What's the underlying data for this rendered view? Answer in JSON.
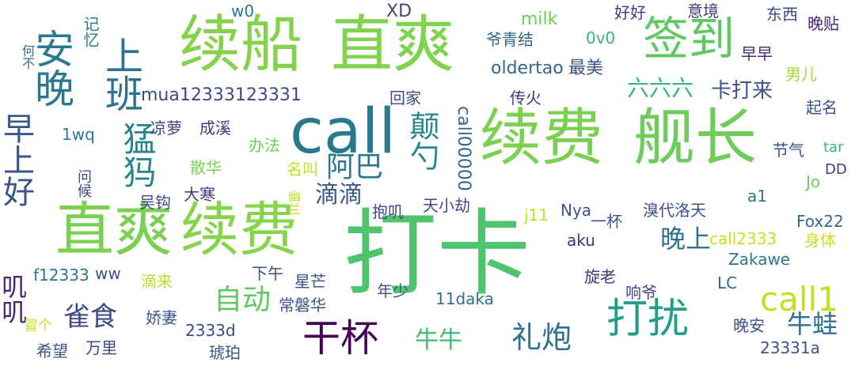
{
  "cloud": {
    "background": "#ffffff",
    "words": [
      {
        "text": "打卡",
        "color": "#4fc36d"
      },
      {
        "text": "续船",
        "color": "#84d14a"
      },
      {
        "text": "直爽",
        "color": "#7fd34e"
      },
      {
        "text": "call",
        "color": "#2a788e"
      },
      {
        "text": "续费",
        "color": "#7ad151"
      },
      {
        "text": "舰长",
        "color": "#6ccd5a"
      },
      {
        "text": "直爽",
        "color": "#7ad151"
      },
      {
        "text": "续费",
        "color": "#86d549"
      },
      {
        "text": "签到",
        "color": "#5ec962"
      },
      {
        "text": "安晚",
        "color": "#2a788e"
      },
      {
        "text": "上班",
        "color": "#2c718e"
      },
      {
        "text": "猛犸",
        "color": "#25858e"
      },
      {
        "text": "早上好",
        "color": "#39568c"
      },
      {
        "text": "打扰",
        "color": "#1f9e89"
      },
      {
        "text": "干杯",
        "color": "#440154"
      },
      {
        "text": "call1",
        "color": "#c2df23"
      },
      {
        "text": "礼炮",
        "color": "#2c728e"
      },
      {
        "text": "颠勺",
        "color": "#23898e"
      },
      {
        "text": "阿巴",
        "color": "#2a788e"
      },
      {
        "text": "自动",
        "color": "#5ec962"
      },
      {
        "text": "雀食",
        "color": "#3e4989"
      },
      {
        "text": "晚上",
        "color": "#2c728e"
      },
      {
        "text": "牛蛙",
        "color": "#2c728e"
      },
      {
        "text": "牛牛",
        "color": "#3fbc73"
      },
      {
        "text": "滴滴",
        "color": "#38598c"
      },
      {
        "text": "六六六",
        "color": "#35b779"
      },
      {
        "text": "卡打来",
        "color": "#3b528b"
      },
      {
        "text": "叽叽",
        "color": "#482878"
      },
      {
        "text": "mua12333123331",
        "color": "#3e4989"
      },
      {
        "text": "oldertao",
        "color": "#31688e"
      },
      {
        "text": "最美",
        "color": "#3b528b"
      },
      {
        "text": "call00000",
        "color": "#31688e"
      },
      {
        "text": "爷青结",
        "color": "#31688e"
      },
      {
        "text": "0v0",
        "color": "#35b779"
      },
      {
        "text": "milk",
        "color": "#6ece58"
      },
      {
        "text": "w0",
        "color": "#2a788e"
      },
      {
        "text": "XD",
        "color": "#414487"
      },
      {
        "text": "好好",
        "color": "#443a83"
      },
      {
        "text": "意境",
        "color": "#453781"
      },
      {
        "text": "东西",
        "color": "#3e4989"
      },
      {
        "text": "晚贴",
        "color": "#482475"
      },
      {
        "text": "早早",
        "color": "#472d7b"
      },
      {
        "text": "男儿",
        "color": "#a0da39"
      },
      {
        "text": "起名",
        "color": "#3b528b"
      },
      {
        "text": "回家",
        "color": "#3e4989"
      },
      {
        "text": "传火",
        "color": "#46327e"
      },
      {
        "text": "凉萝",
        "color": "#414487"
      },
      {
        "text": "成溪",
        "color": "#453781"
      },
      {
        "text": "1wq",
        "color": "#2a788e"
      },
      {
        "text": "办法",
        "color": "#6ece58"
      },
      {
        "text": "散华",
        "color": "#7ad151"
      },
      {
        "text": "名叫",
        "color": "#c8e020"
      },
      {
        "text": "大寒",
        "color": "#46327e"
      },
      {
        "text": "吴钩",
        "color": "#3e4989"
      },
      {
        "text": "问候",
        "color": "#414487"
      },
      {
        "text": "何不",
        "color": "#2c728e"
      },
      {
        "text": "记忆",
        "color": "#2a788e"
      },
      {
        "text": "节气",
        "color": "#3b528b"
      },
      {
        "text": "tar",
        "color": "#35b779"
      },
      {
        "text": "DD",
        "color": "#443a83"
      },
      {
        "text": "Jo",
        "color": "#6ece58"
      },
      {
        "text": "a1",
        "color": "#2a788e"
      },
      {
        "text": "抱叽",
        "color": "#404688"
      },
      {
        "text": "天小劫",
        "color": "#3e4989"
      },
      {
        "text": "溴代洛天",
        "color": "#3b528b"
      },
      {
        "text": "一杯",
        "color": "#3b528b"
      },
      {
        "text": "幽兰",
        "color": "#bddf26"
      },
      {
        "text": "j11",
        "color": "#c8e020"
      },
      {
        "text": "Nya",
        "color": "#3b528b"
      },
      {
        "text": "aku",
        "color": "#472d7b"
      },
      {
        "text": "Fox22",
        "color": "#31688e"
      },
      {
        "text": "身体",
        "color": "#c8e020"
      },
      {
        "text": "call2333",
        "color": "#c8e020"
      },
      {
        "text": "Zakawe",
        "color": "#2a788e"
      },
      {
        "text": "ww",
        "color": "#3b528b"
      },
      {
        "text": "f12333",
        "color": "#2a788e"
      },
      {
        "text": "滴来",
        "color": "#bddf26"
      },
      {
        "text": "下午",
        "color": "#3b528b"
      },
      {
        "text": "星芒",
        "color": "#3b528b"
      },
      {
        "text": "旋老",
        "color": "#46327e"
      },
      {
        "text": "LC",
        "color": "#31688e"
      },
      {
        "text": "响爷",
        "color": "#3e4989"
      },
      {
        "text": "年少",
        "color": "#3b528b"
      },
      {
        "text": "常磐华",
        "color": "#3b528b"
      },
      {
        "text": "11daka",
        "color": "#2c728e"
      },
      {
        "text": "娇妻",
        "color": "#3b528b"
      },
      {
        "text": "冒个",
        "color": "#c8e020"
      },
      {
        "text": "希望",
        "color": "#3b528b"
      },
      {
        "text": "万里",
        "color": "#3e4989"
      },
      {
        "text": "2333d",
        "color": "#3e4989"
      },
      {
        "text": "琥珀",
        "color": "#3b528b"
      },
      {
        "text": "晚安",
        "color": "#3b528b"
      },
      {
        "text": "23331a",
        "color": "#3b528b"
      }
    ]
  }
}
